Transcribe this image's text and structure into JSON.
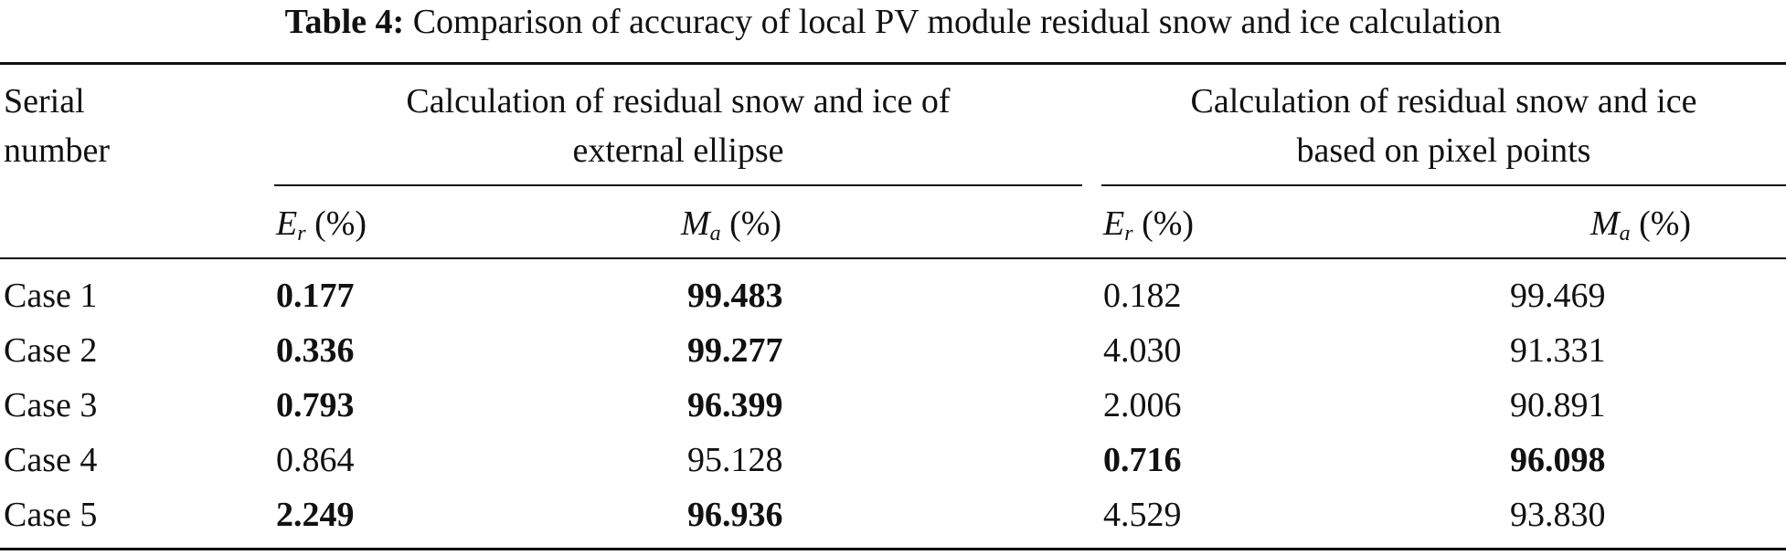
{
  "caption": {
    "label": "Table 4:",
    "text": "Comparison of accuracy of local PV module residual snow and ice calculation"
  },
  "headers": {
    "serial": [
      "Serial",
      "number"
    ],
    "group1": [
      "Calculation of residual snow and ice of",
      "external ellipse"
    ],
    "group2": [
      "Calculation of residual snow and ice",
      "based on pixel points"
    ],
    "er": {
      "main": "E",
      "sub": "r",
      "unit": " (%)"
    },
    "ma": {
      "main": "M",
      "sub": "a",
      "unit": " (%)"
    }
  },
  "rows": [
    {
      "name": "Case 1",
      "er1": "0.177",
      "ma1": "99.483",
      "er2": "0.182",
      "ma2": "99.469"
    },
    {
      "name": "Case 2",
      "er1": "0.336",
      "ma1": "99.277",
      "er2": "4.030",
      "ma2": "91.331"
    },
    {
      "name": "Case 3",
      "er1": "0.793",
      "ma1": "96.399",
      "er2": "2.006",
      "ma2": "90.891"
    },
    {
      "name": "Case 4",
      "er1": "0.864",
      "ma1": "95.128",
      "er2": "0.716",
      "ma2": "96.098"
    },
    {
      "name": "Case 5",
      "er1": "2.249",
      "ma1": "96.936",
      "er2": "4.529",
      "ma2": "93.830"
    }
  ]
}
